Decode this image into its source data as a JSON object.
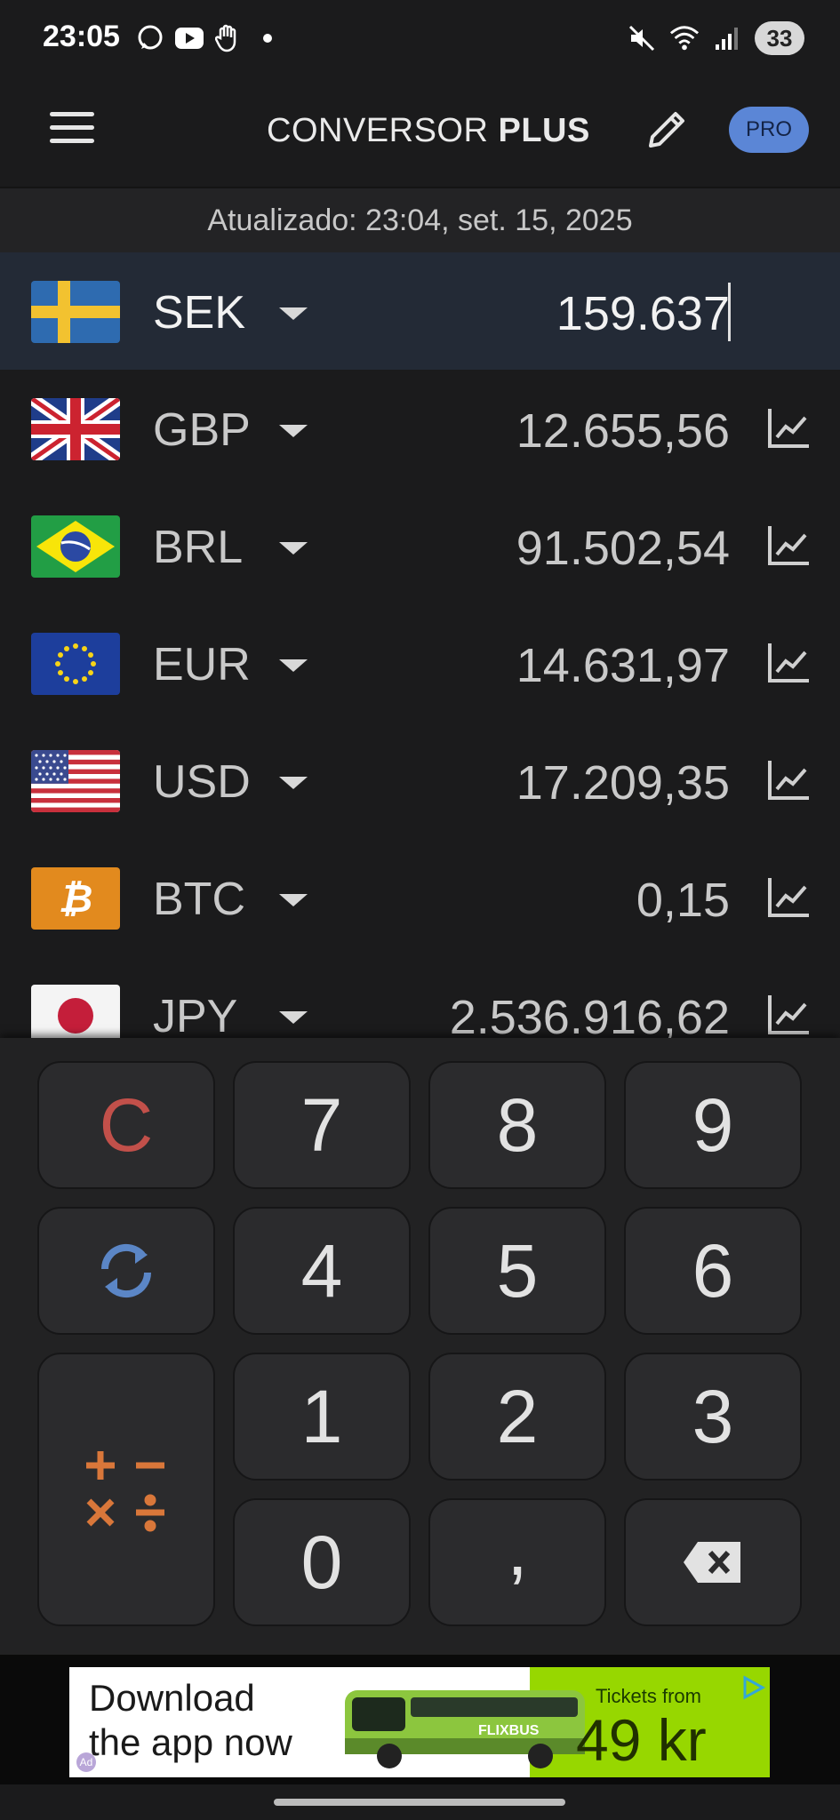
{
  "status_bar": {
    "time": "23:05",
    "battery": "33",
    "left_icons": [
      "whatsapp-icon",
      "youtube-icon",
      "hand-icon",
      "dot-icon"
    ],
    "right_icons": [
      "mute-icon",
      "wifi-icon",
      "signal-icon"
    ]
  },
  "app_bar": {
    "title_regular": "CONVERSOR",
    "title_bold": "PLUS",
    "pro_label": "PRO"
  },
  "updated_text": "Atualizado: 23:04, set. 15, 2025",
  "currencies": [
    {
      "code": "SEK",
      "value": "159.637",
      "active": true,
      "flag": "sweden-flag"
    },
    {
      "code": "GBP",
      "value": "12.655,56",
      "flag": "uk-flag"
    },
    {
      "code": "BRL",
      "value": "91.502,54",
      "flag": "brazil-flag"
    },
    {
      "code": "EUR",
      "value": "14.631,97",
      "flag": "eu-flag"
    },
    {
      "code": "USD",
      "value": "17.209,35",
      "flag": "usa-flag"
    },
    {
      "code": "BTC",
      "value": "0,15",
      "flag": "bitcoin-icon"
    },
    {
      "code": "JPY",
      "value": "2.536.916,62",
      "flag": "japan-flag"
    }
  ],
  "keypad": {
    "clear": "C",
    "k7": "7",
    "k8": "8",
    "k9": "9",
    "k4": "4",
    "k5": "5",
    "k6": "6",
    "k1": "1",
    "k2": "2",
    "k3": "3",
    "k0": "0",
    "comma": ",",
    "accent_clear": "#c2504a",
    "accent_swap": "#5b86c6",
    "accent_ops": "#d9773a"
  },
  "ad": {
    "line1": "Download",
    "line2": "the app now",
    "tickets": "Tickets from",
    "price": "49 kr",
    "bus_brand": "FLIXBUS",
    "ad_mark": "Ad"
  }
}
